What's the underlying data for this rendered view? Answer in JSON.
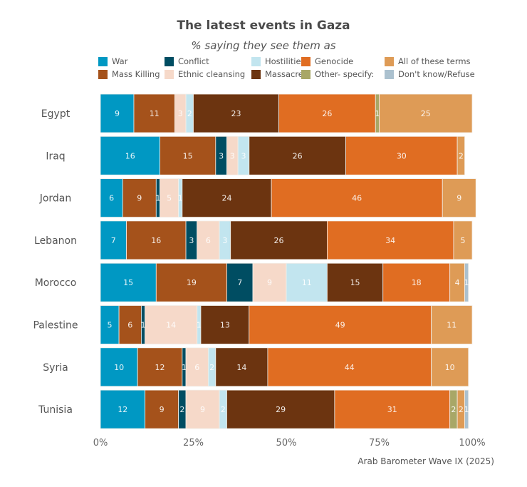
{
  "chart_data": {
    "type": "bar",
    "orientation": "horizontal",
    "stacked": true,
    "title": "The latest events in Gaza",
    "subtitle": "% saying they see them as",
    "source": "Arab Barometer Wave IX (2025)",
    "xlabel": "",
    "ylabel": "",
    "xlim": [
      0,
      100
    ],
    "x_ticks": [
      "0%",
      "25%",
      "50%",
      "75%",
      "100%"
    ],
    "x_tick_values": [
      0,
      25,
      50,
      75,
      100
    ],
    "grid": false,
    "legend_position": "top",
    "categories": [
      "Egypt",
      "Iraq",
      "Jordan",
      "Lebanon",
      "Morocco",
      "Palestine",
      "Syria",
      "Tunisia"
    ],
    "series": [
      {
        "name": "War",
        "color": "#0098c3",
        "values": [
          9,
          16,
          6,
          7,
          15,
          5,
          10,
          12
        ]
      },
      {
        "name": "Mass Killing",
        "color": "#a5521b",
        "values": [
          11,
          15,
          9,
          16,
          19,
          6,
          12,
          9
        ]
      },
      {
        "name": "Conflict",
        "color": "#004d62",
        "values": [
          0,
          3,
          1,
          3,
          7,
          1,
          1,
          2
        ]
      },
      {
        "name": "Ethnic cleansing",
        "color": "#f6d9c9",
        "values": [
          3,
          3,
          5,
          6,
          9,
          14,
          6,
          9
        ]
      },
      {
        "name": "Hostilities",
        "color": "#c2e5ef",
        "values": [
          2,
          3,
          1,
          3,
          11,
          1,
          2,
          2
        ]
      },
      {
        "name": "Massacre",
        "color": "#6c3410",
        "values": [
          23,
          26,
          24,
          26,
          15,
          13,
          14,
          29
        ]
      },
      {
        "name": "Genocide",
        "color": "#e06d22",
        "values": [
          26,
          30,
          46,
          34,
          18,
          49,
          44,
          31
        ]
      },
      {
        "name": "Other- specify:",
        "color": "#a8a767",
        "values": [
          1,
          0,
          0,
          0,
          0,
          0,
          0,
          2
        ]
      },
      {
        "name": "All of these terms",
        "color": "#de9b56",
        "values": [
          25,
          2,
          9,
          5,
          4,
          11,
          10,
          2
        ]
      },
      {
        "name": "Don't know/Refuse",
        "color": "#abc1cf",
        "values": [
          0,
          0,
          0,
          0,
          1,
          0,
          0,
          1
        ]
      }
    ],
    "legend_order": [
      "War",
      "Conflict",
      "Hostilities",
      "Genocide",
      "All of these terms",
      "Mass Killing",
      "Ethnic cleansing",
      "Massacre",
      "Other- specify:",
      "Don't know/Refuse"
    ]
  }
}
